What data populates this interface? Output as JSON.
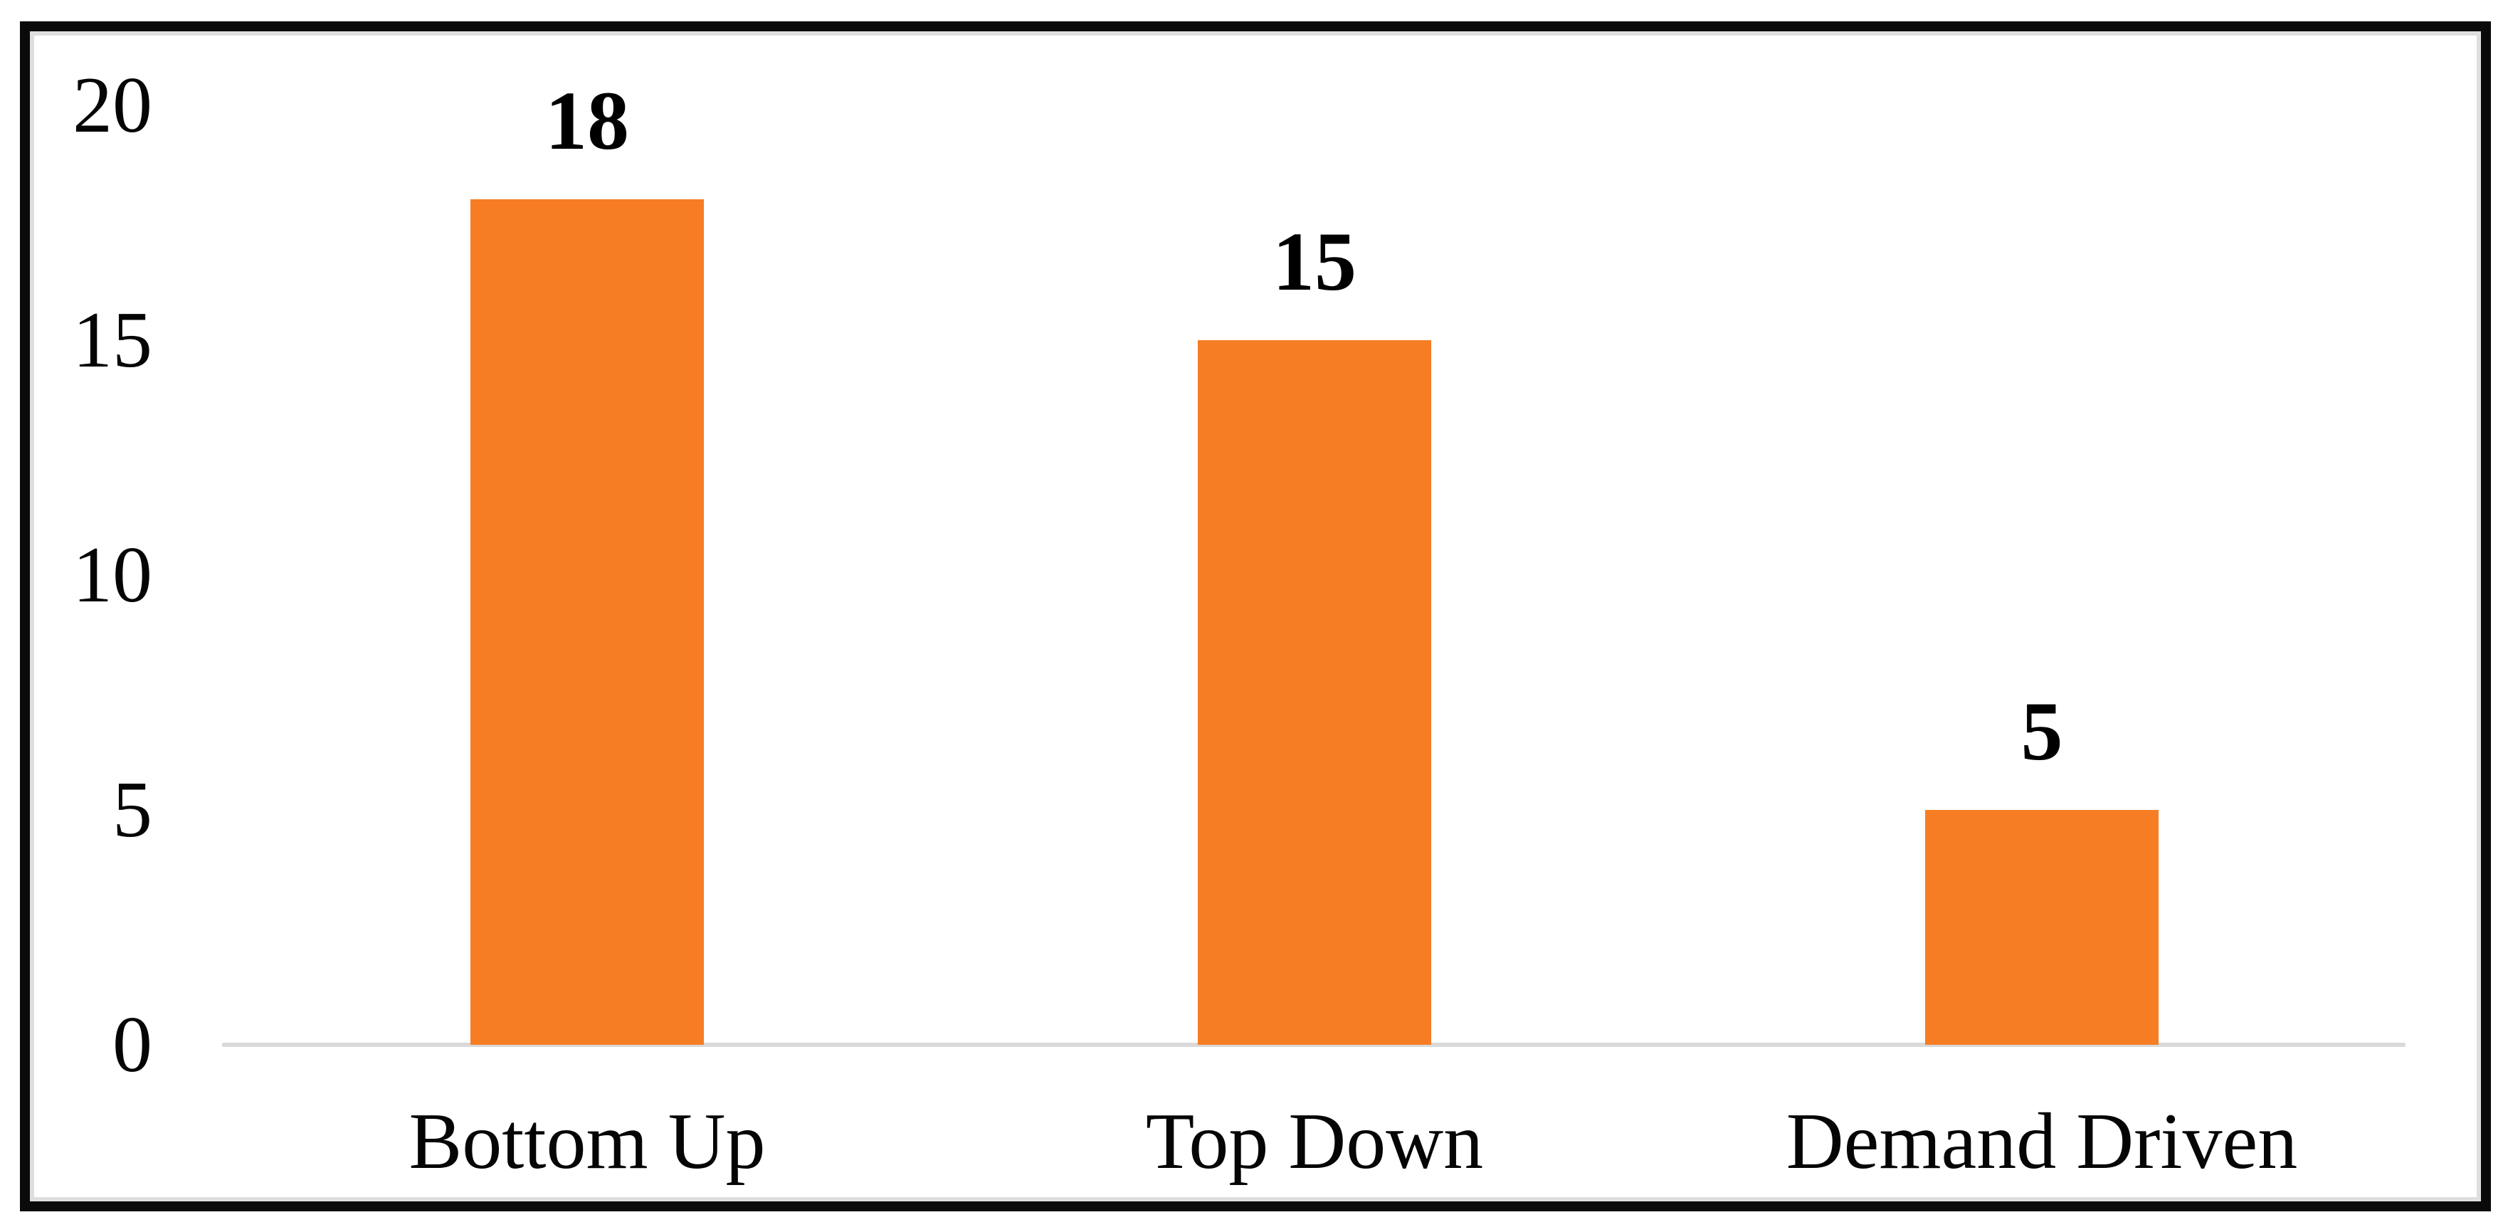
{
  "chart_data": {
    "type": "bar",
    "categories": [
      "Bottom Up",
      "Top Down",
      "Demand Driven"
    ],
    "values": [
      18,
      15,
      5
    ],
    "title": "",
    "xlabel": "",
    "ylabel": "",
    "ylim": [
      0,
      20
    ],
    "yticks": [
      0,
      5,
      10,
      15,
      20
    ],
    "grid": false,
    "legend": "none",
    "data_labels": [
      18,
      15,
      5
    ],
    "colors": {
      "bar": "#F67D24",
      "axis_line": "#D9D9D9",
      "text": "#050505",
      "frame_border": "#0A0A0A",
      "frame_inner_border": "#DEDEDE",
      "background": "#FFFFFF"
    }
  }
}
